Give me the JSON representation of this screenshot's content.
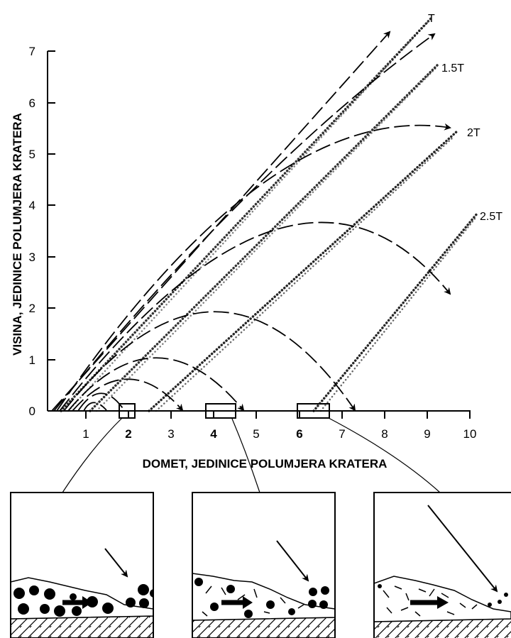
{
  "figure": {
    "ylabel": "VISINA, JEDINICE POLUMJERA KRATERA",
    "xlabel": "DOMET, JEDINICE POLUMJERA KRATERA",
    "x_ticks": [
      "1",
      "2",
      "3",
      "4",
      "5",
      "6",
      "7",
      "8",
      "9",
      "10"
    ],
    "y_ticks": [
      "0",
      "1",
      "2",
      "3",
      "4",
      "5",
      "6",
      "7"
    ],
    "curve_labels": [
      "T",
      "1.5T",
      "2T",
      "2.5T"
    ]
  },
  "chart_data": {
    "type": "line",
    "xlabel": "DOMET, JEDINICE POLUMJERA KRATERA",
    "ylabel": "VISINA, JEDINICE POLUMJERA KRATERA",
    "xlim": [
      0,
      10
    ],
    "ylim": [
      0,
      7
    ],
    "series": [
      {
        "name": "T",
        "x": [
          0.3,
          1,
          2,
          3,
          4,
          5,
          6,
          7,
          8,
          8.8
        ],
        "y": [
          0,
          0.55,
          1.45,
          2.3,
          3.15,
          4.0,
          4.8,
          5.6,
          6.4,
          7.5
        ]
      },
      {
        "name": "1.5T",
        "x": [
          1.0,
          2,
          3,
          4,
          5,
          6,
          7,
          8,
          9.1
        ],
        "y": [
          0,
          0.8,
          1.6,
          2.4,
          3.2,
          4.0,
          4.8,
          5.6,
          6.7
        ]
      },
      {
        "name": "2T",
        "x": [
          2.4,
          3,
          4,
          5,
          6,
          7,
          8,
          9.7
        ],
        "y": [
          0,
          0.45,
          1.2,
          2.0,
          2.8,
          3.6,
          4.4,
          5.5
        ]
      },
      {
        "name": "2.5T",
        "x": [
          5.8,
          6.5,
          7,
          8,
          9,
          10
        ],
        "y": [
          0,
          0.5,
          0.8,
          1.6,
          2.4,
          3.7
        ]
      }
    ],
    "grid": false
  }
}
